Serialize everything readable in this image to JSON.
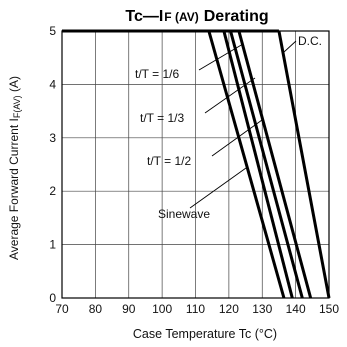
{
  "chart_data": {
    "type": "line",
    "title": {
      "part1": "Tc",
      "dash": "—",
      "part2_main": "I",
      "part2_small": "F (AV)",
      "part3": "Derating"
    },
    "xlabel": "Case Temperature  Tc (°C)",
    "ylabel": "Average Forward Current   I",
    "ylabel_sub": "F(AV)",
    "ylabel_unit": " (A)",
    "xlim": [
      70,
      150
    ],
    "ylim": [
      0,
      5
    ],
    "x_ticks": [
      "70",
      "80",
      "90",
      "100",
      "110",
      "120",
      "130",
      "140",
      "150"
    ],
    "y_ticks": [
      "0",
      "1",
      "2",
      "3",
      "4",
      "5"
    ],
    "grid": true,
    "series": [
      {
        "name": "Sinewave",
        "x": [
          114,
          136.5
        ],
        "y": [
          5,
          0
        ],
        "label_index": 0
      },
      {
        "name": "t/T = 1/2",
        "x": [
          118.5,
          139
        ],
        "y": [
          5,
          0
        ],
        "label_index": 1
      },
      {
        "name": "t/T = 1/3",
        "x": [
          120.5,
          142
        ],
        "y": [
          5,
          0
        ],
        "label_index": 2
      },
      {
        "name": "t/T = 1/6",
        "x": [
          123,
          144.5
        ],
        "y": [
          5,
          0
        ],
        "label_index": 3
      },
      {
        "name": "D.C.",
        "x": [
          135,
          150
        ],
        "y": [
          5,
          0
        ],
        "label_index": 4
      }
    ],
    "flat_segment": {
      "x": [
        70,
        135
      ],
      "y": [
        5,
        5
      ]
    },
    "annotations": [
      {
        "text": "Sinewave"
      },
      {
        "text": "t/T = 1/2"
      },
      {
        "text": "t/T = 1/3"
      },
      {
        "text": "t/T = 1/6"
      },
      {
        "text": "D.C."
      }
    ]
  }
}
